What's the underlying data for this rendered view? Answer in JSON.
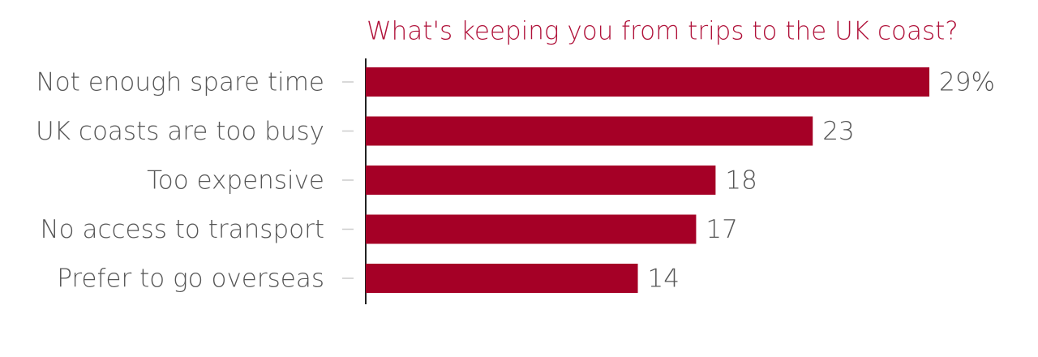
{
  "chart_data": {
    "type": "barh",
    "title": "What's keeping you from trips to the UK coast?",
    "categories": [
      "Not enough spare time",
      "UK coasts are too busy",
      "Too expensive",
      "No access to transport",
      "Prefer to go overseas"
    ],
    "values": [
      29,
      23,
      18,
      17,
      14
    ],
    "value_labels": [
      "29%",
      "23",
      "18",
      "17",
      "14"
    ],
    "color": "#a50026",
    "xlim": [
      0,
      30
    ]
  }
}
